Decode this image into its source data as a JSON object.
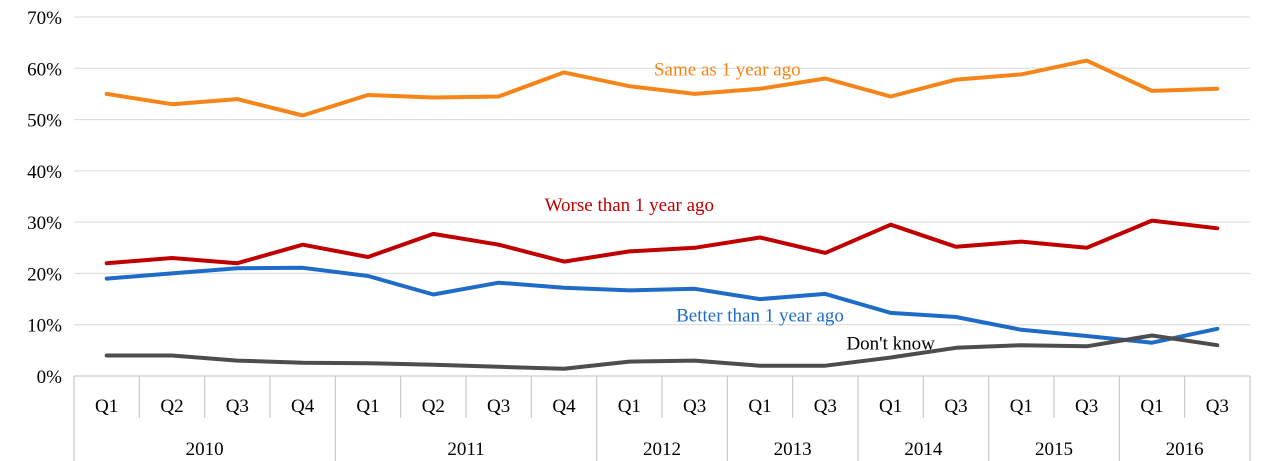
{
  "chart_data": {
    "type": "line",
    "categories": [
      "Q1",
      "Q2",
      "Q3",
      "Q4",
      "Q1",
      "Q2",
      "Q3",
      "Q4",
      "Q1",
      "Q3",
      "Q1",
      "Q3",
      "Q1",
      "Q3",
      "Q1",
      "Q3",
      "Q1",
      "Q3"
    ],
    "groups": [
      {
        "label": "2010",
        "count": 4
      },
      {
        "label": "2011",
        "count": 4
      },
      {
        "label": "2012",
        "count": 2
      },
      {
        "label": "2013",
        "count": 2
      },
      {
        "label": "2014",
        "count": 2
      },
      {
        "label": "2015",
        "count": 2
      },
      {
        "label": "2016",
        "count": 2
      }
    ],
    "y_ticks": [
      "0%",
      "10%",
      "20%",
      "30%",
      "40%",
      "50%",
      "60%",
      "70%"
    ],
    "ylim": [
      0,
      70
    ],
    "grid": true,
    "series": [
      {
        "name": "Same as 1 year ago",
        "color": "#f58518",
        "label_at": [
          10,
          60
        ],
        "values": [
          55.0,
          53.0,
          54.0,
          50.8,
          54.8,
          54.3,
          54.5,
          59.2,
          56.5,
          55.0,
          56.0,
          58.0,
          54.5,
          57.8,
          58.8,
          61.5,
          55.6,
          56.0
        ]
      },
      {
        "name": "Worse than 1 year ago",
        "color": "#c00000",
        "label_at": [
          8.5,
          33.5
        ],
        "values": [
          22.0,
          23.0,
          22.0,
          25.6,
          23.2,
          27.7,
          25.6,
          22.3,
          24.3,
          25.0,
          27.0,
          24.0,
          29.5,
          25.2,
          26.2,
          25.0,
          30.3,
          28.8
        ]
      },
      {
        "name": "Better than 1 year ago",
        "color": "#1f6cc8",
        "label_at": [
          10.5,
          12
        ],
        "values": [
          19.0,
          20.0,
          21.0,
          21.1,
          19.5,
          15.9,
          18.2,
          17.2,
          16.7,
          17.0,
          15.0,
          16.0,
          12.3,
          11.5,
          9.0,
          7.8,
          6.5,
          9.2
        ]
      },
      {
        "name": "Don't know",
        "color": "#4d4d4d",
        "label_at": [
          12.5,
          6.5
        ],
        "values": [
          4.0,
          4.0,
          3.0,
          2.6,
          2.5,
          2.2,
          1.8,
          1.4,
          2.8,
          3.0,
          2.0,
          2.0,
          3.6,
          5.5,
          6.0,
          5.8,
          7.9,
          6.0
        ]
      }
    ]
  }
}
